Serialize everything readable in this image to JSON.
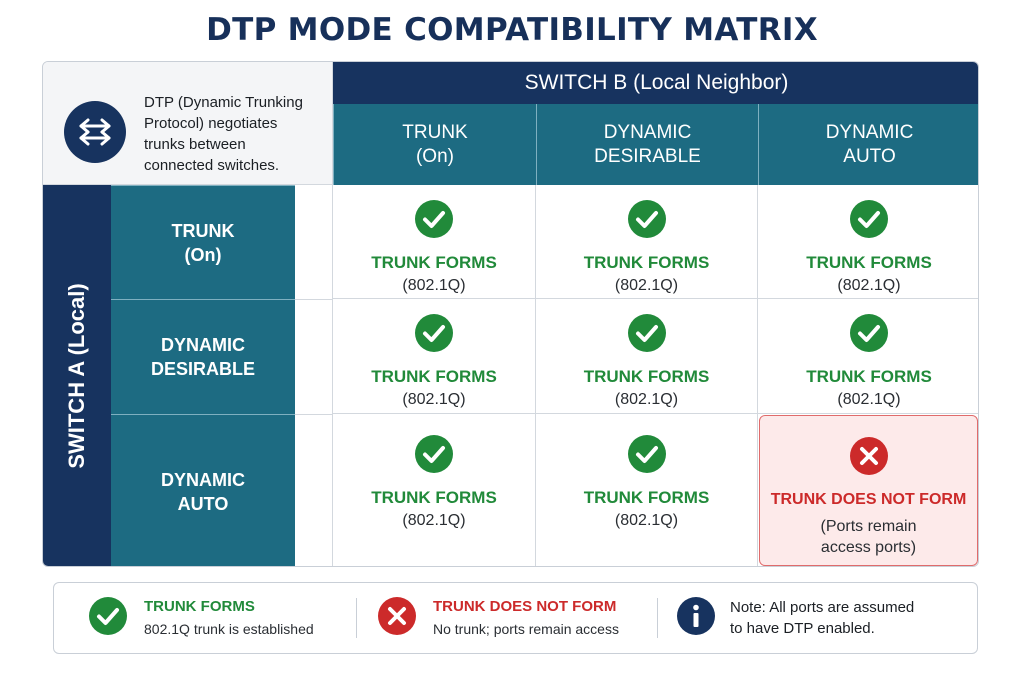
{
  "title": "DTP MODE COMPATIBILITY MATRIX",
  "info": {
    "lines": [
      "DTP (Dynamic Trunking",
      "Protocol) negotiates",
      "trunks between",
      "connected switches."
    ]
  },
  "switch_b": {
    "label": "SWITCH B (Local Neighbor)"
  },
  "switch_a": {
    "label": "SWITCH A (Local)"
  },
  "columns": [
    {
      "line1": "TRUNK",
      "line2": "(On)"
    },
    {
      "line1": "DYNAMIC",
      "line2": "DESIRABLE"
    },
    {
      "line1": "DYNAMIC",
      "line2": "AUTO"
    }
  ],
  "rows": [
    {
      "line1": "TRUNK",
      "line2": "(On)"
    },
    {
      "line1": "DYNAMIC",
      "line2": "DESIRABLE"
    },
    {
      "line1": "DYNAMIC",
      "line2": "AUTO"
    }
  ],
  "cells": [
    [
      {
        "status": "success",
        "result": "TRUNK FORMS",
        "sub1": "(802.1Q)",
        "sub2": ""
      },
      {
        "status": "success",
        "result": "TRUNK FORMS",
        "sub1": "(802.1Q)",
        "sub2": ""
      },
      {
        "status": "success",
        "result": "TRUNK FORMS",
        "sub1": "(802.1Q)",
        "sub2": ""
      }
    ],
    [
      {
        "status": "success",
        "result": "TRUNK FORMS",
        "sub1": "(802.1Q)",
        "sub2": ""
      },
      {
        "status": "success",
        "result": "TRUNK FORMS",
        "sub1": "(802.1Q)",
        "sub2": ""
      },
      {
        "status": "success",
        "result": "TRUNK FORMS",
        "sub1": "(802.1Q)",
        "sub2": ""
      }
    ],
    [
      {
        "status": "success",
        "result": "TRUNK FORMS",
        "sub1": "(802.1Q)",
        "sub2": ""
      },
      {
        "status": "success",
        "result": "TRUNK FORMS",
        "sub1": "(802.1Q)",
        "sub2": ""
      },
      {
        "status": "fail",
        "result": "TRUNK DOES NOT FORM",
        "sub1": "(Ports remain",
        "sub2": "access ports)"
      }
    ]
  ],
  "legend": {
    "success": {
      "title": "TRUNK FORMS",
      "desc": "802.1Q trunk is established"
    },
    "fail": {
      "title": "TRUNK DOES NOT FORM",
      "desc": "No trunk; ports remain access"
    },
    "note": {
      "line1": "Note: All ports are assumed",
      "line2": "to have DTP enabled."
    }
  },
  "colors": {
    "navy": "#17335f",
    "teal": "#1d6b82",
    "success": "#218a3a",
    "fail": "#cc2a2a",
    "fail_bg": "#fdeaea",
    "title": "#17305a"
  },
  "icons": {
    "info_box": "network-switch-arrows-icon",
    "success": "check-circle-icon",
    "fail": "x-circle-icon",
    "note": "info-circle-icon"
  }
}
